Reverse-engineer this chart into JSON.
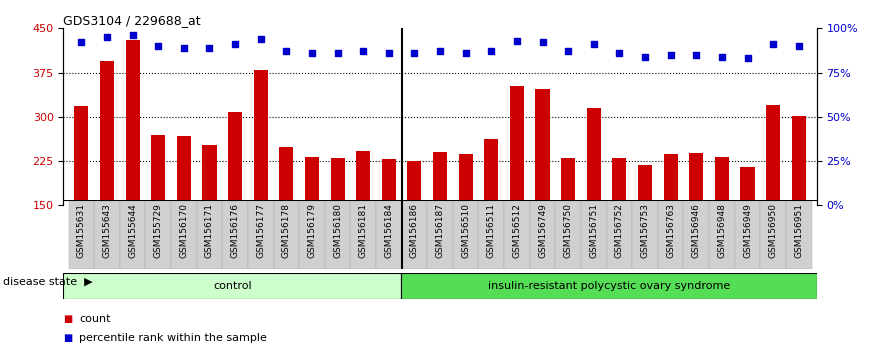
{
  "title": "GDS3104 / 229688_at",
  "samples": [
    "GSM155631",
    "GSM155643",
    "GSM155644",
    "GSM155729",
    "GSM156170",
    "GSM156171",
    "GSM156176",
    "GSM156177",
    "GSM156178",
    "GSM156179",
    "GSM156180",
    "GSM156181",
    "GSM156184",
    "GSM156186",
    "GSM156187",
    "GSM156510",
    "GSM156511",
    "GSM156512",
    "GSM156749",
    "GSM156750",
    "GSM156751",
    "GSM156752",
    "GSM156753",
    "GSM156763",
    "GSM156946",
    "GSM156948",
    "GSM156949",
    "GSM156950",
    "GSM156951"
  ],
  "bar_values": [
    318,
    395,
    430,
    270,
    268,
    252,
    308,
    380,
    248,
    232,
    230,
    242,
    228,
    225,
    240,
    237,
    262,
    352,
    348,
    230,
    315,
    230,
    218,
    237,
    238,
    232,
    215,
    320,
    302
  ],
  "percentile_values": [
    92,
    95,
    96,
    90,
    89,
    89,
    91,
    94,
    87,
    86,
    86,
    87,
    86,
    86,
    87,
    86,
    87,
    93,
    92,
    87,
    91,
    86,
    84,
    85,
    85,
    84,
    83,
    91,
    90
  ],
  "control_count": 13,
  "ylim_left": [
    150,
    450
  ],
  "ylim_right": [
    0,
    100
  ],
  "yticks_left": [
    150,
    225,
    300,
    375,
    450
  ],
  "yticks_right": [
    0,
    25,
    50,
    75,
    100
  ],
  "bar_color": "#cc0000",
  "dot_color": "#0000cc",
  "control_label": "control",
  "disease_label": "insulin-resistant polycystic ovary syndrome",
  "control_bg": "#ccffcc",
  "disease_bg": "#55dd55",
  "xlabel_label": "disease state",
  "legend_count_label": "count",
  "legend_pct_label": "percentile rank within the sample",
  "bg_plot": "#ffffff",
  "tick_bg": "#d8d8d8"
}
